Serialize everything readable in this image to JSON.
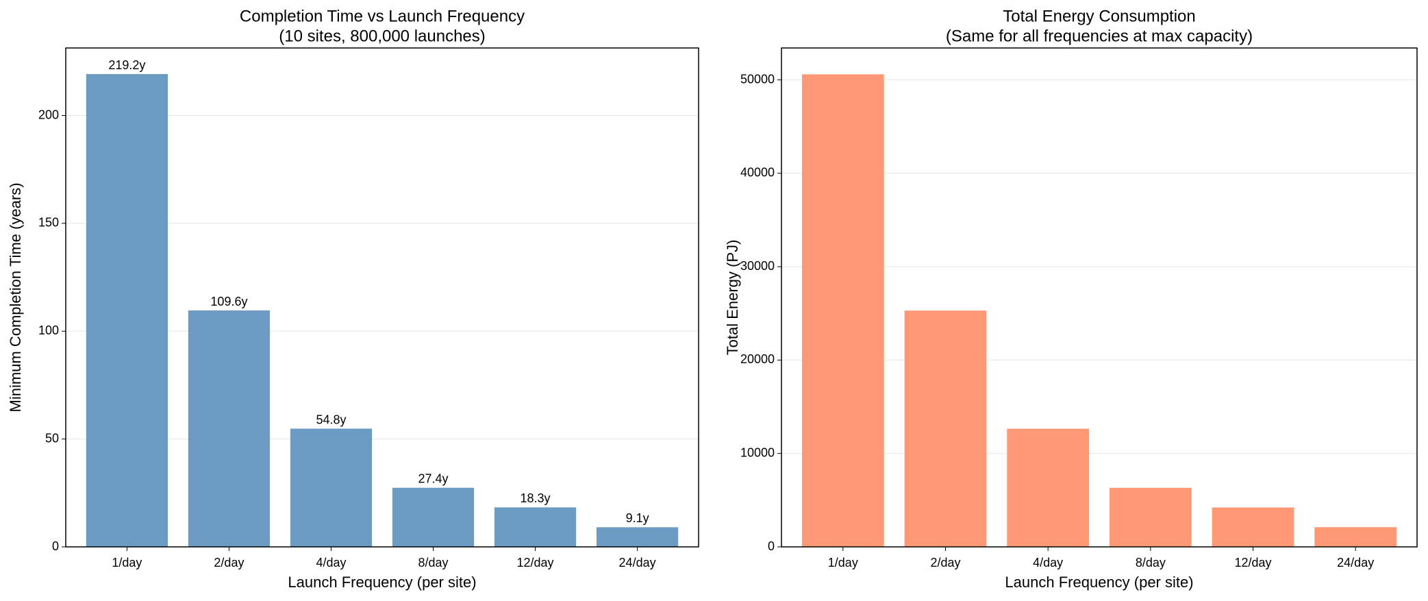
{
  "chart_data": [
    {
      "type": "bar",
      "title": "Completion Time vs Launch Frequency",
      "subtitle": "(10 sites, 800,000 launches)",
      "x_label": "Launch Frequency (per site)",
      "y_label": "Minimum Completion Time (years)",
      "categories": [
        "1/day",
        "2/day",
        "4/day",
        "8/day",
        "12/day",
        "24/day"
      ],
      "values": [
        219.2,
        109.6,
        54.8,
        27.4,
        18.3,
        9.1
      ],
      "value_labels": [
        "219.2y",
        "109.6y",
        "54.8y",
        "27.4y",
        "18.3y",
        "9.1y"
      ],
      "color": "#6b9bc3",
      "ylim": [
        0,
        231.3
      ],
      "yticks": [
        0,
        50,
        100,
        150,
        200
      ],
      "grid": true
    },
    {
      "type": "bar",
      "title": "Total Energy Consumption",
      "subtitle": "(Same for all frequencies at max capacity)",
      "x_label": "Launch Frequency (per site)",
      "y_label": "Total Energy (PJ)",
      "categories": [
        "1/day",
        "2/day",
        "4/day",
        "8/day",
        "12/day",
        "24/day"
      ],
      "values": [
        50600,
        25300,
        12650,
        6325,
        4217,
        2108
      ],
      "color": "#ff9874",
      "ylim": [
        0,
        53418
      ],
      "yticks": [
        0,
        10000,
        20000,
        30000,
        40000,
        50000
      ],
      "grid": true
    }
  ]
}
